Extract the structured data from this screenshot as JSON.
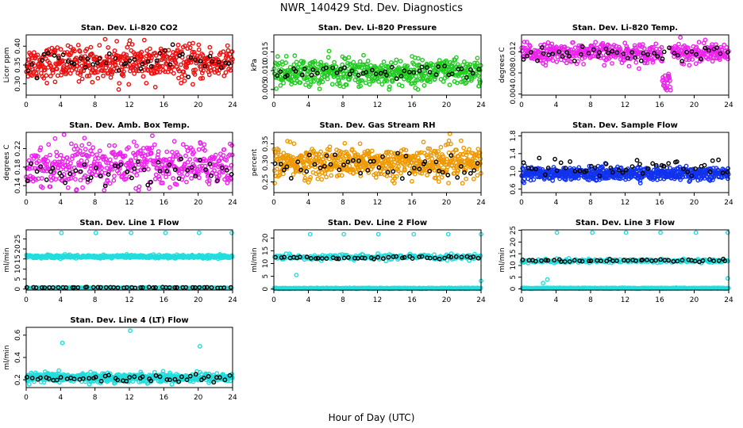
{
  "figure": {
    "title": "NWR_140429  Std. Dev. Diagnostics",
    "xlabel": "Hour of Day (UTC)"
  },
  "chart_data": [
    {
      "type": "scatter",
      "title": "Stan. Dev. Li-820 CO2",
      "ylabel": "Licor ppm",
      "xlim": [
        0,
        24
      ],
      "xticks": [
        0,
        4,
        8,
        12,
        16,
        20,
        24
      ],
      "ylim": [
        0.27,
        0.43
      ],
      "yticks": [
        0.3,
        0.35,
        0.4
      ],
      "ytick_labels": [
        "0.30",
        "0.35",
        "0.40"
      ],
      "series": [
        {
          "color": "#ee1111",
          "n": 520,
          "mean": 0.355,
          "spread": 0.022,
          "min": 0.285,
          "max": 0.42
        },
        {
          "color": "#000000",
          "n": 48,
          "mean": 0.358,
          "spread": 0.015,
          "min": 0.3,
          "max": 0.43
        }
      ]
    },
    {
      "type": "scatter",
      "title": "Stan. Dev. Li-820 Pressure",
      "ylabel": "kPa",
      "xlim": [
        0,
        24
      ],
      "xticks": [
        0,
        4,
        8,
        12,
        16,
        20,
        24
      ],
      "ylim": [
        0.0035,
        0.0195
      ],
      "yticks": [
        0.005,
        0.01,
        0.015
      ],
      "ytick_labels": [
        "0.005",
        "0.010",
        "0.015"
      ],
      "series": [
        {
          "color": "#22cc22",
          "n": 560,
          "mean": 0.0095,
          "spread": 0.0018,
          "min": 0.005,
          "max": 0.018
        },
        {
          "color": "#000000",
          "n": 48,
          "mean": 0.0095,
          "spread": 0.0009,
          "min": 0.007,
          "max": 0.014
        }
      ]
    },
    {
      "type": "scatter",
      "title": "Stan. Dev. Li-820 Temp.",
      "ylabel": "degrees C",
      "xlim": [
        0,
        24
      ],
      "xticks": [
        0,
        4,
        8,
        12,
        16,
        20,
        24
      ],
      "ylim": [
        0.0038,
        0.0152
      ],
      "yticks": [
        0.004,
        0.008,
        0.012
      ],
      "ytick_labels": [
        "0.004",
        "0.008",
        "0.012"
      ],
      "series": [
        {
          "color": "#ee22ee",
          "n": 480,
          "mean": 0.0118,
          "spread": 0.0009,
          "min": 0.004,
          "max": 0.015,
          "dip": {
            "x": 16.8,
            "y": 0.0045
          }
        },
        {
          "color": "#000000",
          "n": 48,
          "mean": 0.0118,
          "spread": 0.0006,
          "min": 0.004,
          "max": 0.0145
        }
      ]
    },
    {
      "type": "scatter",
      "title": "Stan. Dev. Amb. Box Temp.",
      "ylabel": "degrees C",
      "xlim": [
        0,
        24
      ],
      "xticks": [
        0,
        4,
        8,
        12,
        16,
        20,
        24
      ],
      "ylim": [
        0.125,
        0.255
      ],
      "yticks": [
        0.14,
        0.18,
        0.22
      ],
      "ytick_labels": [
        "0.14",
        "0.18",
        "0.22"
      ],
      "series": [
        {
          "color": "#ee22ee",
          "n": 480,
          "mean": 0.185,
          "spread": 0.022,
          "min": 0.13,
          "max": 0.25
        },
        {
          "color": "#000000",
          "n": 48,
          "mean": 0.17,
          "spread": 0.015,
          "min": 0.135,
          "max": 0.22
        }
      ]
    },
    {
      "type": "scatter",
      "title": "Stan. Dev. Gas Stream RH",
      "ylabel": "percent",
      "xlim": [
        0,
        24
      ],
      "xticks": [
        0,
        4,
        8,
        12,
        16,
        20,
        24
      ],
      "ylim": [
        0.222,
        0.38
      ],
      "yticks": [
        0.25,
        0.3,
        0.35
      ],
      "ytick_labels": [
        "0.25",
        "0.30",
        "0.35"
      ],
      "series": [
        {
          "color": "#ee9900",
          "n": 620,
          "mean": 0.3,
          "spread": 0.02,
          "min": 0.225,
          "max": 0.38
        },
        {
          "color": "#000000",
          "n": 48,
          "mean": 0.295,
          "spread": 0.018,
          "min": 0.25,
          "max": 0.35
        }
      ]
    },
    {
      "type": "scatter",
      "title": "Stan. Dev. Sample Flow",
      "ylabel": "",
      "xlim": [
        0,
        24
      ],
      "xticks": [
        0,
        4,
        8,
        12,
        16,
        20,
        24
      ],
      "ylim": [
        0.52,
        1.88
      ],
      "yticks": [
        0.6,
        1.0,
        1.4,
        1.8
      ],
      "ytick_labels": [
        "0.6",
        "1.0",
        "1.4",
        "1.8"
      ],
      "series": [
        {
          "color": "#1133ee",
          "n": 620,
          "mean": 0.95,
          "spread": 0.07,
          "min": 0.55,
          "max": 1.85
        },
        {
          "color": "#000000",
          "n": 48,
          "mean": 1.1,
          "spread": 0.1,
          "min": 0.9,
          "max": 1.4
        }
      ]
    },
    {
      "type": "scatter",
      "title": "Stan. Dev. Line 1 Flow",
      "ylabel": "ml/min",
      "xlim": [
        0,
        24
      ],
      "xticks": [
        0,
        4,
        8,
        12,
        16,
        20,
        24
      ],
      "ylim": [
        -0.5,
        29.5
      ],
      "yticks": [
        0,
        5,
        10,
        15,
        20,
        25
      ],
      "ytick_labels": [
        "0",
        "5",
        "10",
        "15",
        "20",
        "25"
      ],
      "series": [
        {
          "color": "#22dddd",
          "n": 440,
          "mean": 16.2,
          "spread": 0.4,
          "min": 14,
          "max": 18
        },
        {
          "color": "#22dddd",
          "n": 140,
          "mean": 0.6,
          "spread": 0.1,
          "min": 0.3,
          "max": 1.0
        },
        {
          "color": "#000000",
          "n": 48,
          "mean": 0.8,
          "spread": 0.1,
          "min": 0.5,
          "max": 1.2
        }
      ],
      "outliers": [
        [
          4.1,
          28
        ],
        [
          8.1,
          28
        ],
        [
          12.2,
          28
        ],
        [
          16.2,
          28
        ],
        [
          20.1,
          28
        ],
        [
          23.9,
          28
        ]
      ]
    },
    {
      "type": "scatter",
      "title": "Stan. Dev. Line 2 Flow",
      "ylabel": "ml/min",
      "xlim": [
        0,
        24
      ],
      "xticks": [
        0,
        4,
        8,
        12,
        16,
        20,
        24
      ],
      "ylim": [
        -0.4,
        23.2
      ],
      "yticks": [
        0,
        5,
        10,
        15,
        20
      ],
      "ytick_labels": [
        "0",
        "5",
        "10",
        "15",
        "20"
      ],
      "series": [
        {
          "color": "#22dddd",
          "n": 220,
          "mean": 12.5,
          "spread": 0.5,
          "min": 9,
          "max": 15
        },
        {
          "color": "#22dddd",
          "n": 380,
          "mean": 0.3,
          "spread": 0.08,
          "min": 0.1,
          "max": 0.6
        },
        {
          "color": "#000000",
          "n": 48,
          "mean": 12.3,
          "spread": 0.3,
          "min": 11,
          "max": 14
        }
      ],
      "outliers": [
        [
          4.2,
          21.5
        ],
        [
          8.1,
          21.5
        ],
        [
          12.1,
          21.5
        ],
        [
          16.2,
          21.5
        ],
        [
          20.2,
          21.5
        ],
        [
          24.0,
          21.5
        ],
        [
          24.0,
          3.2
        ],
        [
          2.6,
          5.5
        ]
      ]
    },
    {
      "type": "scatter",
      "title": "Stan. Dev. Line 3 Flow",
      "ylabel": "ml/min",
      "xlim": [
        0,
        24
      ],
      "xticks": [
        0,
        4,
        8,
        12,
        16,
        20,
        24
      ],
      "ylim": [
        -0.5,
        25.2
      ],
      "yticks": [
        0,
        5,
        10,
        15,
        20,
        25
      ],
      "ytick_labels": [
        "0",
        "5",
        "10",
        "15",
        "20",
        "25"
      ],
      "series": [
        {
          "color": "#22dddd",
          "n": 220,
          "mean": 12.0,
          "spread": 0.4,
          "min": 10,
          "max": 14
        },
        {
          "color": "#22dddd",
          "n": 380,
          "mean": 0.3,
          "spread": 0.08,
          "min": 0.1,
          "max": 0.6
        },
        {
          "color": "#000000",
          "n": 48,
          "mean": 12.0,
          "spread": 0.3,
          "min": 10.5,
          "max": 13.5
        }
      ],
      "outliers": [
        [
          4.1,
          24
        ],
        [
          8.2,
          24
        ],
        [
          12.1,
          24
        ],
        [
          16.1,
          24
        ],
        [
          20.2,
          24
        ],
        [
          23.9,
          24
        ],
        [
          23.9,
          4.5
        ],
        [
          2.5,
          2.5
        ],
        [
          3.0,
          4.0
        ]
      ]
    },
    {
      "type": "scatter",
      "title": "Stan. Dev. Line 4 (LT) Flow",
      "ylabel": "ml/min",
      "xlim": [
        0,
        24
      ],
      "xticks": [
        0,
        4,
        8,
        12,
        16,
        20,
        24
      ],
      "ylim": [
        0.13,
        0.67
      ],
      "yticks": [
        0.2,
        0.4,
        0.6
      ],
      "ytick_labels": [
        "0.2",
        "0.4",
        "0.6"
      ],
      "series": [
        {
          "color": "#22dddd",
          "n": 560,
          "mean": 0.22,
          "spread": 0.02,
          "min": 0.16,
          "max": 0.3
        },
        {
          "color": "#000000",
          "n": 48,
          "mean": 0.21,
          "spread": 0.015,
          "min": 0.16,
          "max": 0.26
        }
      ],
      "outliers": [
        [
          4.2,
          0.53
        ],
        [
          12.1,
          0.64
        ],
        [
          20.2,
          0.5
        ]
      ]
    }
  ]
}
